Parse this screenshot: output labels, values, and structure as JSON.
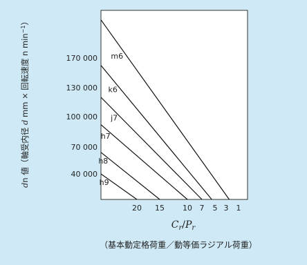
{
  "chart_data": {
    "type": "line",
    "ylabel": {
      "a": "d",
      "b": "n 値（軸受内径 ",
      "c": "d",
      "d": " mm × 回転速度 n min",
      "sup": "−1",
      "e": "）"
    },
    "xlabel": {
      "main_a": "C",
      "main_a_sub": "r",
      "main_sep": "/",
      "main_b": "P",
      "main_b_sub": "r",
      "sub": "（基本動定格荷重／動等価ラジアル荷重）"
    },
    "y_ticks": [
      "170 000",
      "130 000",
      "100 000",
      "70 000",
      "40 000"
    ],
    "x_ticks": [
      "20",
      "15",
      "10",
      "7",
      "5",
      "3",
      "1"
    ],
    "series": [
      {
        "name": "m6",
        "points": [
          [
            30,
            210000
          ],
          [
            2.5,
            0
          ]
        ]
      },
      {
        "name": "k6",
        "points": [
          [
            30,
            160000
          ],
          [
            5.5,
            0
          ]
        ]
      },
      {
        "name": "j7",
        "points": [
          [
            30,
            120000
          ],
          [
            7,
            0
          ]
        ]
      },
      {
        "name": "h7",
        "points": [
          [
            30,
            92000
          ],
          [
            10,
            0
          ]
        ]
      },
      {
        "name": "h8",
        "points": [
          [
            30,
            64000
          ],
          [
            15,
            0
          ]
        ]
      },
      {
        "name": "h9",
        "points": [
          [
            30,
            40000
          ],
          [
            20,
            0
          ]
        ]
      }
    ]
  }
}
